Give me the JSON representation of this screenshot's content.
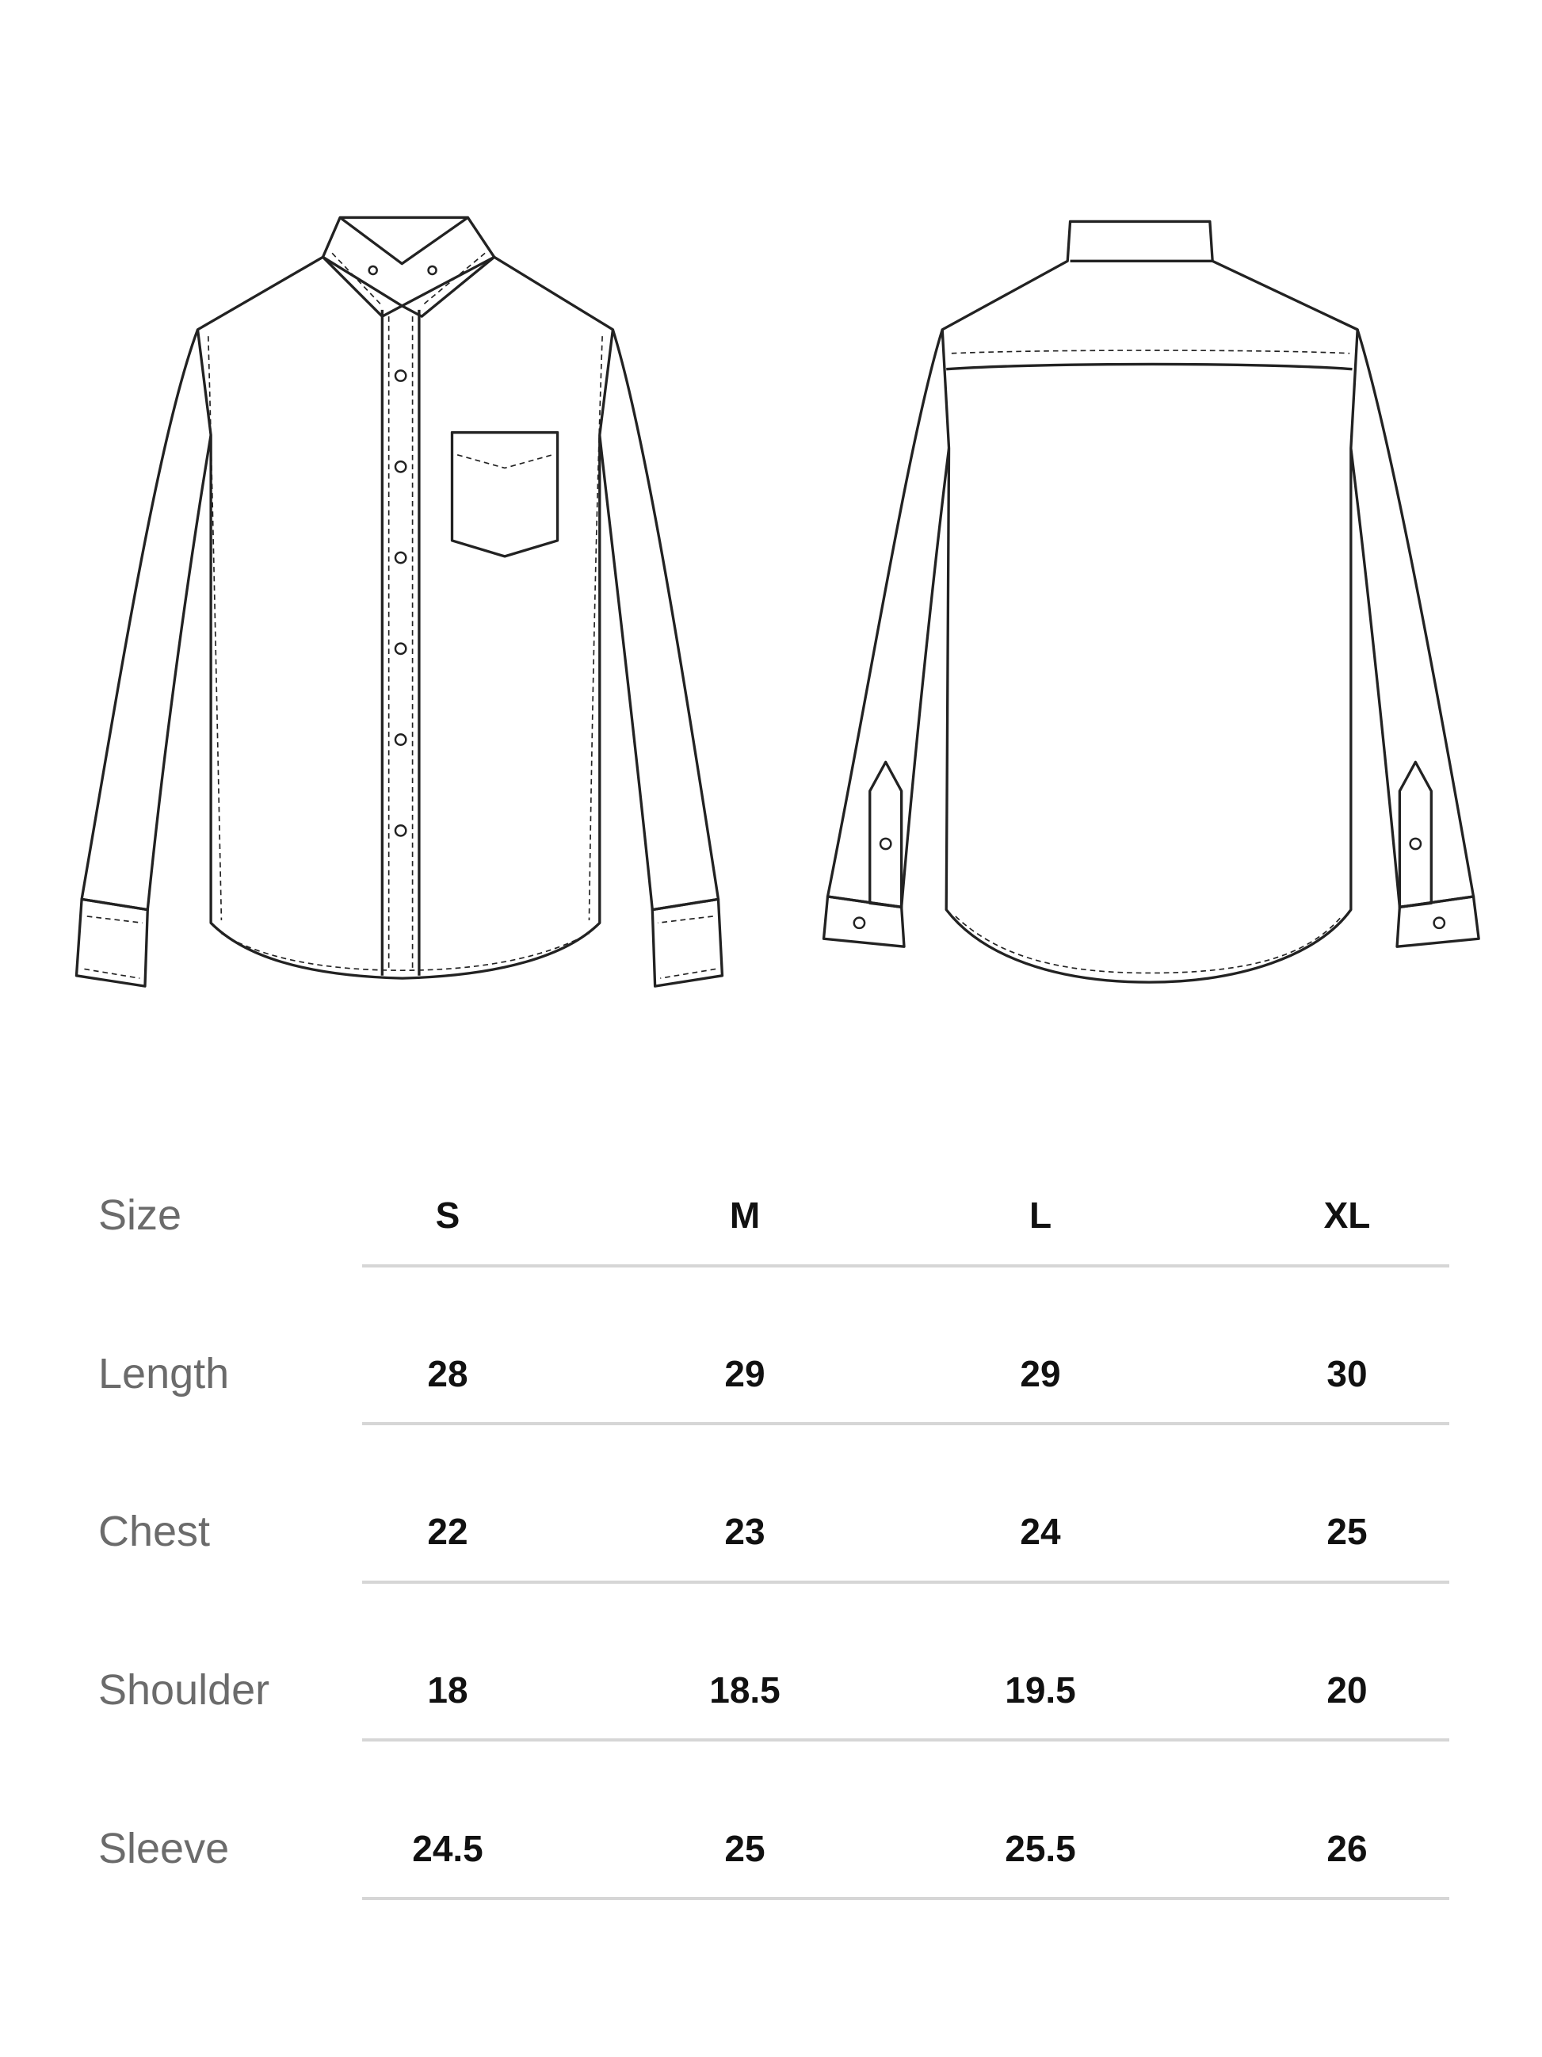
{
  "illustrations": {
    "front": "shirt-front-flat-sketch",
    "back": "shirt-back-flat-sketch"
  },
  "size_chart": {
    "header": {
      "label": "Size",
      "sizes": [
        "S",
        "M",
        "L",
        "XL"
      ]
    },
    "rows": [
      {
        "label": "Length",
        "values": [
          "28",
          "29",
          "29",
          "30"
        ]
      },
      {
        "label": "Chest",
        "values": [
          "22",
          "23",
          "24",
          "25"
        ]
      },
      {
        "label": "Shoulder",
        "values": [
          "18",
          "18.5",
          "19.5",
          "20"
        ]
      },
      {
        "label": "Sleeve",
        "values": [
          "24.5",
          "25",
          "25.5",
          "26"
        ]
      }
    ]
  }
}
